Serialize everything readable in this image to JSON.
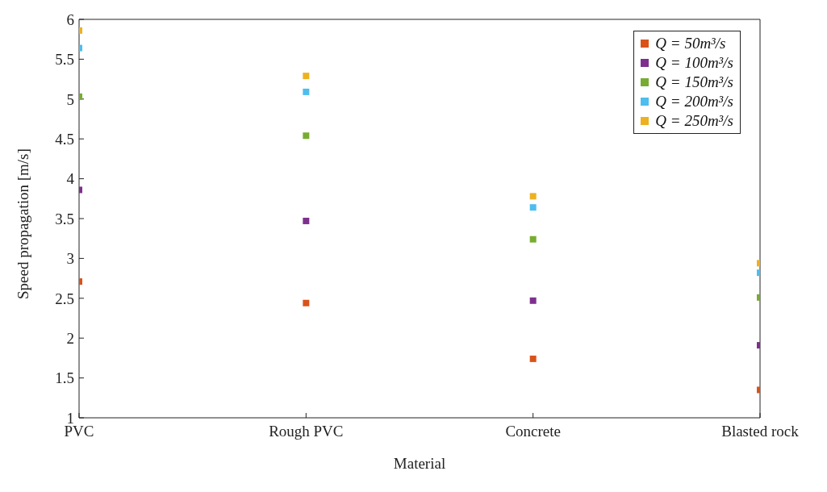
{
  "chart_data": {
    "type": "scatter",
    "xlabel": "Material",
    "ylabel": "Speed propagation [m/s]",
    "categories": [
      "PVC",
      "Rough PVC",
      "Concrete",
      "Blasted rock"
    ],
    "ylim": [
      1,
      6
    ],
    "yticks": [
      1,
      1.5,
      2,
      2.5,
      3,
      3.5,
      4,
      4.5,
      5,
      5.5,
      6
    ],
    "grid": false,
    "legend": "top right",
    "marker": "square",
    "series": [
      {
        "name": "Q = 50m³/s",
        "color": "#d95319",
        "values": [
          2.71,
          2.44,
          1.74,
          1.35
        ]
      },
      {
        "name": "Q = 100m³/s",
        "color": "#7e2f8e",
        "values": [
          3.86,
          3.47,
          2.47,
          1.91
        ]
      },
      {
        "name": "Q = 150m³/s",
        "color": "#77ac30",
        "values": [
          5.03,
          4.54,
          3.24,
          2.51
        ]
      },
      {
        "name": "Q = 200m³/s",
        "color": "#4dbeee",
        "values": [
          5.64,
          5.09,
          3.64,
          2.82
        ]
      },
      {
        "name": "Q = 250m³/s",
        "color": "#edb120",
        "values": [
          5.86,
          5.29,
          3.78,
          2.94
        ]
      }
    ]
  }
}
